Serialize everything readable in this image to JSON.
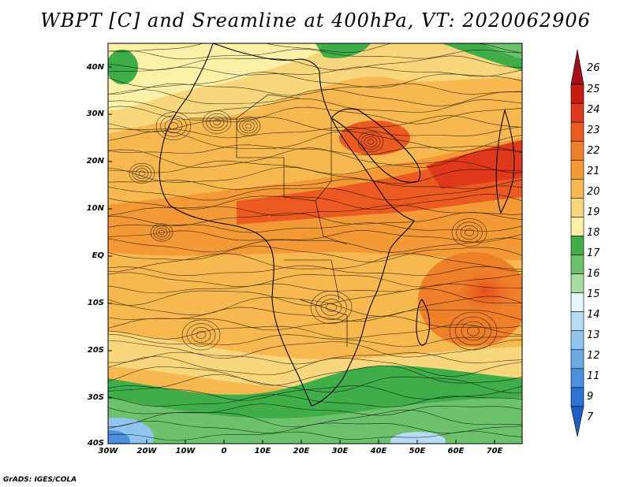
{
  "title": "WBPT [C] and Sreamline at 400hPa, VT: 2020062906",
  "map": {
    "projection": "lat-lon",
    "lon_range": [
      -30,
      77
    ],
    "lat_range": [
      -40,
      45
    ],
    "lat_labels": [
      "40N",
      "30N",
      "20N",
      "10N",
      "EQ",
      "10S",
      "20S",
      "30S",
      "40S"
    ],
    "lon_labels": [
      "30W",
      "20W",
      "10W",
      "0",
      "10E",
      "20E",
      "30E",
      "40E",
      "50E",
      "60E",
      "70E"
    ]
  },
  "colorbar": {
    "levels": [
      "26",
      "25",
      "24",
      "23",
      "22",
      "21",
      "20",
      "19",
      "18",
      "17",
      "16",
      "15",
      "14",
      "13",
      "12",
      "11",
      "9",
      "7"
    ],
    "colors": [
      "#a50f15",
      "#c81e12",
      "#e0381a",
      "#ec5a22",
      "#f07f2a",
      "#f39a36",
      "#f6b84f",
      "#f8d77c",
      "#fbf0a6",
      "#3fae49",
      "#6cc16a",
      "#a8dba0",
      "#e6f7fb",
      "#b6dcf5",
      "#8ec4ee",
      "#6aabe6",
      "#4a90df",
      "#2f72d6",
      "#1f5bc8"
    ]
  },
  "credit": "GrADS: IGES/COLA"
}
